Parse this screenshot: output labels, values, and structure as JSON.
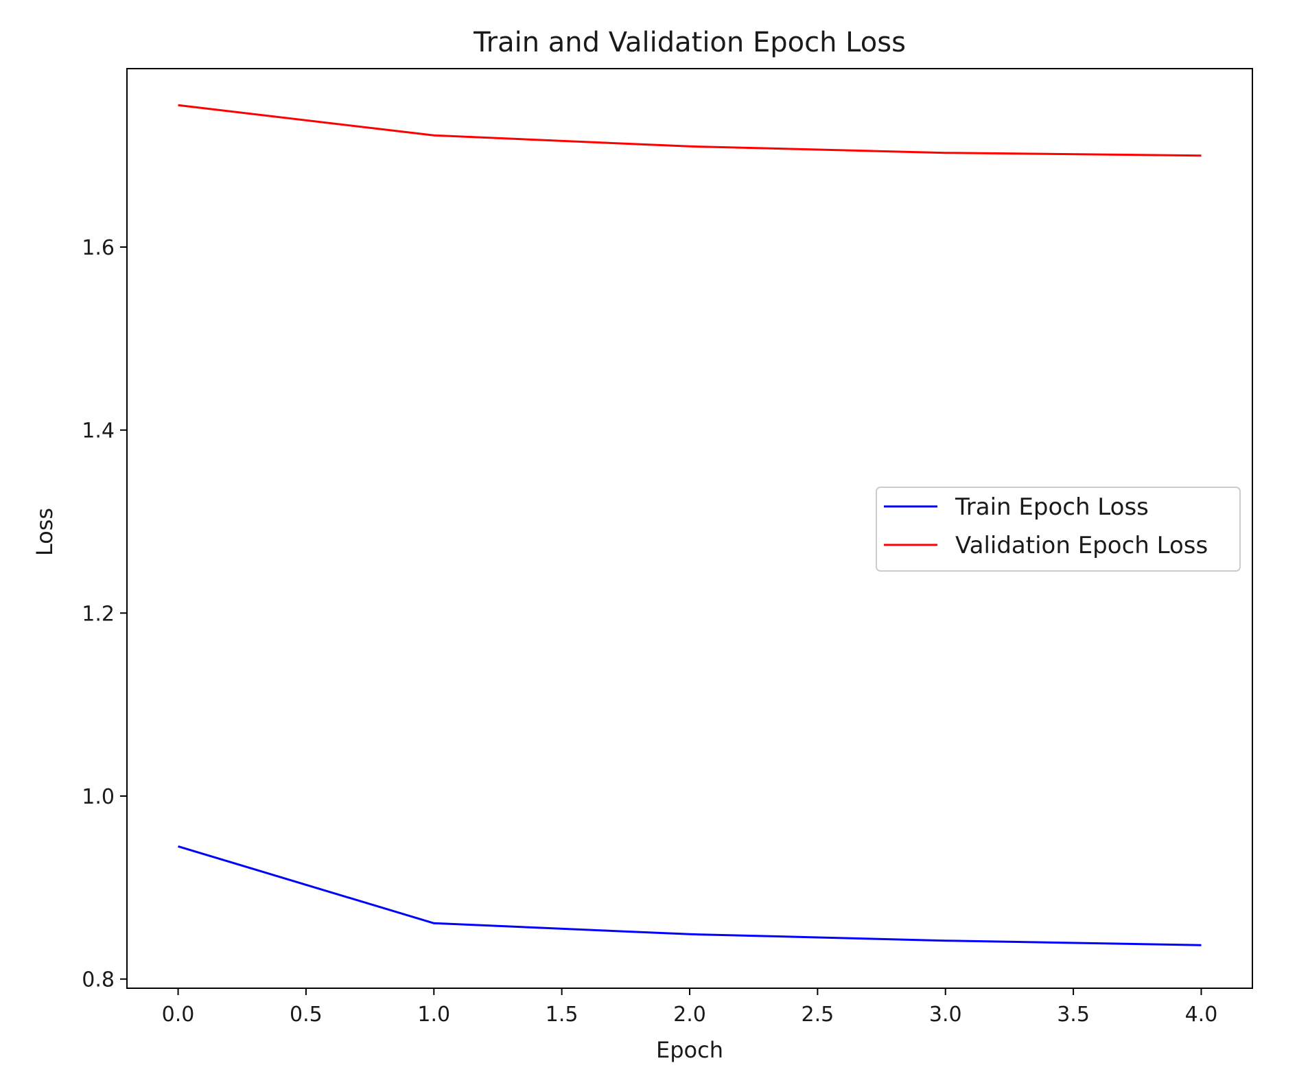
{
  "chart_data": {
    "type": "line",
    "title": "Train and Validation Epoch Loss",
    "xlabel": "Epoch",
    "ylabel": "Loss",
    "x": [
      0,
      1,
      2,
      3,
      4
    ],
    "xlim": [
      -0.2,
      4.2
    ],
    "ylim": [
      0.79,
      1.795
    ],
    "xticks": [
      0.0,
      0.5,
      1.0,
      1.5,
      2.0,
      2.5,
      3.0,
      3.5,
      4.0
    ],
    "xtick_labels": [
      "0.0",
      "0.5",
      "1.0",
      "1.5",
      "2.0",
      "2.5",
      "3.0",
      "3.5",
      "4.0"
    ],
    "yticks": [
      0.8,
      1.0,
      1.2,
      1.4,
      1.6
    ],
    "ytick_labels": [
      "0.8",
      "1.0",
      "1.2",
      "1.4",
      "1.6"
    ],
    "grid": false,
    "legend_position": "center-right",
    "series": [
      {
        "name": "Train Epoch Loss",
        "color": "#0000ff",
        "values": [
          0.945,
          0.861,
          0.849,
          0.842,
          0.837
        ]
      },
      {
        "name": "Validation Epoch Loss",
        "color": "#ff0000",
        "values": [
          1.755,
          1.722,
          1.71,
          1.703,
          1.7
        ]
      }
    ]
  }
}
